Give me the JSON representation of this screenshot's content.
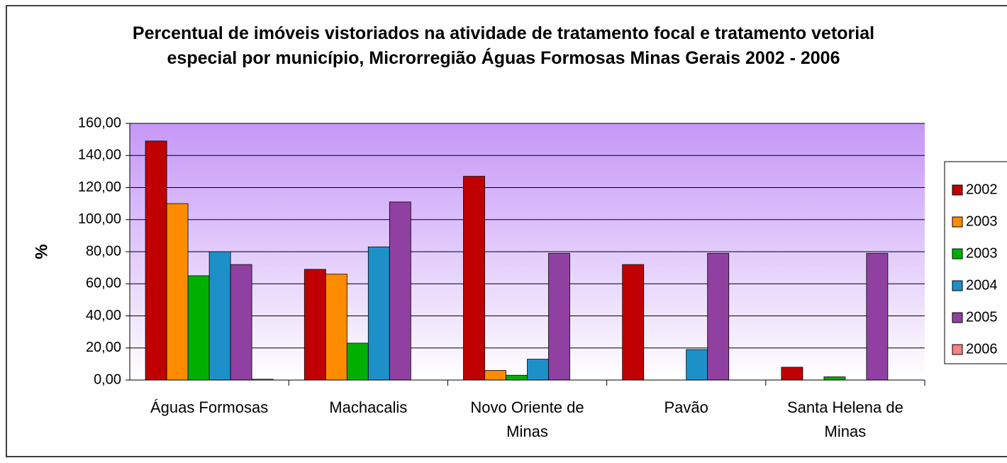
{
  "chart_data": {
    "type": "bar",
    "title": "Percentual de imóveis vistoriados na atividade de tratamento focal e tratamento vetorial especial por município, Microrregião Águas Formosas Minas Gerais 2002 - 2006",
    "y_label": "%",
    "categories": [
      "Águas Formosas",
      "Machacalis",
      "Novo Oriente de Minas",
      "Pavão",
      "Santa Helena de Minas"
    ],
    "series": [
      {
        "name": "2002",
        "color": "#c00000",
        "values": [
          149,
          69,
          127,
          72,
          8
        ]
      },
      {
        "name": "2003",
        "color": "#ff8c00",
        "values": [
          110,
          66,
          6,
          0,
          0
        ]
      },
      {
        "name": "2003",
        "color": "#00b000",
        "values": [
          65,
          23,
          3,
          0,
          2
        ]
      },
      {
        "name": "2004",
        "color": "#1e90c8",
        "values": [
          80,
          83,
          13,
          19,
          0
        ]
      },
      {
        "name": "2005",
        "color": "#9040a0",
        "values": [
          72,
          111,
          79,
          79,
          79
        ]
      },
      {
        "name": "2006",
        "color": "#ff8080",
        "values": [
          0.5,
          0,
          0,
          0,
          0
        ]
      }
    ],
    "ylim": [
      0,
      160
    ],
    "yticks": [
      {
        "value": 0,
        "label": "0,00"
      },
      {
        "value": 20,
        "label": "20,00"
      },
      {
        "value": 40,
        "label": "40,00"
      },
      {
        "value": 60,
        "label": "60,00"
      },
      {
        "value": 80,
        "label": "80,00"
      },
      {
        "value": 100,
        "label": "100,00"
      },
      {
        "value": 120,
        "label": "120,00"
      },
      {
        "value": 140,
        "label": "140,00"
      },
      {
        "value": 160,
        "label": "160,00"
      }
    ],
    "grid": true
  }
}
